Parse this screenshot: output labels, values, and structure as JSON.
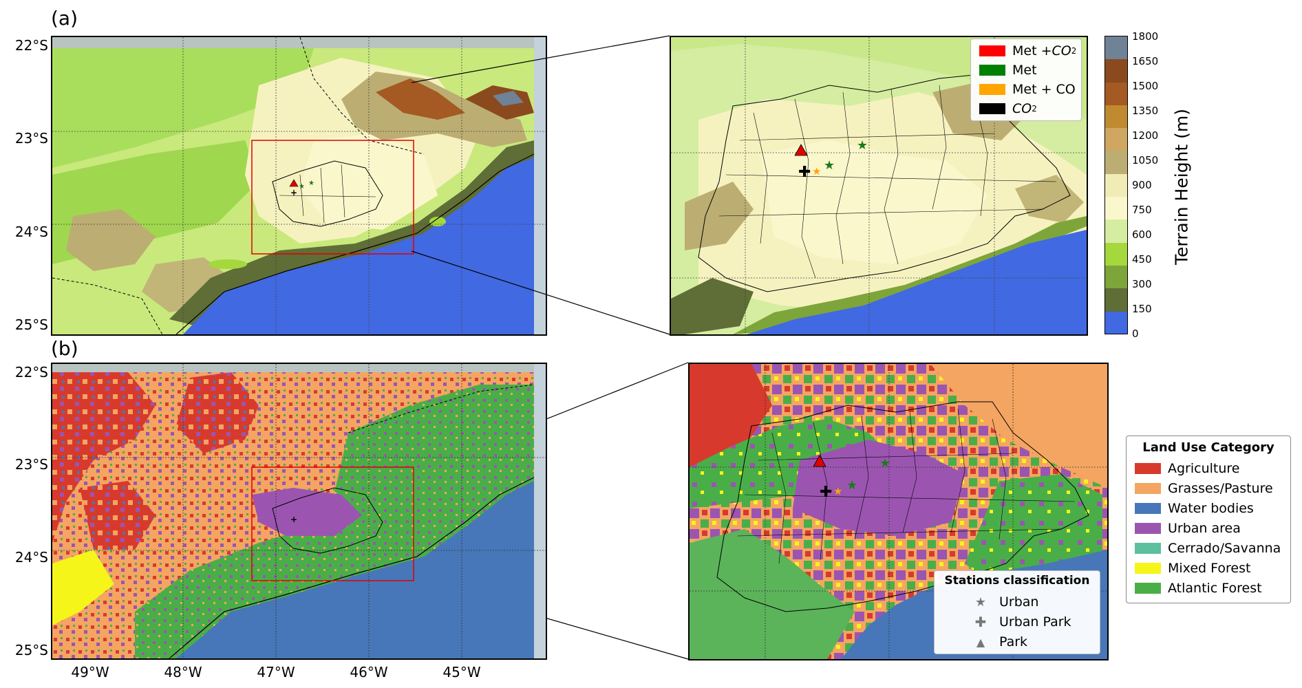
{
  "panels": {
    "a": {
      "letter": "(a)"
    },
    "b": {
      "letter": "(b)"
    }
  },
  "axes": {
    "lat_labels": [
      "22°S",
      "23°S",
      "24°S",
      "25°S"
    ],
    "lon_labels": [
      "49°W",
      "48°W",
      "47°W",
      "46°W",
      "45°W"
    ]
  },
  "terrain_legend": {
    "items": [
      {
        "label_main": "Met + ",
        "label_sub": "CO",
        "label_subscript": "2",
        "color": "#ff0000"
      },
      {
        "label_main": "Met",
        "label_sub": "",
        "label_subscript": "",
        "color": "#008000"
      },
      {
        "label_main": "Met + CO",
        "label_sub": "",
        "label_subscript": "",
        "color": "#ffa500"
      },
      {
        "label_main": "",
        "label_sub": "CO",
        "label_subscript": "2",
        "color": "#000000"
      }
    ]
  },
  "colorbar": {
    "title": "Terrain Height (m)",
    "ticks": [
      "1800",
      "1650",
      "1500",
      "1350",
      "1200",
      "1050",
      "900",
      "750",
      "600",
      "450",
      "300",
      "150",
      "0"
    ],
    "colors": [
      "#6f8296",
      "#8a4a1e",
      "#a45a22",
      "#c08a30",
      "#cfa760",
      "#bcae72",
      "#f1ecb6",
      "#fbf7cc",
      "#d5eda0",
      "#a5d83d",
      "#7ea53a",
      "#5f6d36",
      "#4169e1"
    ]
  },
  "landuse_legend": {
    "title": "Land Use Category",
    "items": [
      {
        "label": "Agriculture",
        "color": "#d73a2d"
      },
      {
        "label": "Grasses/Pasture",
        "color": "#f4a562"
      },
      {
        "label": "Water bodies",
        "color": "#4777b8"
      },
      {
        "label": "Urban area",
        "color": "#9b55b0"
      },
      {
        "label": "Cerrado/Savanna",
        "color": "#5cbf9d"
      },
      {
        "label": "Mixed Forest",
        "color": "#f5f51a"
      },
      {
        "label": "Atlantic Forest",
        "color": "#4aae48"
      }
    ]
  },
  "stations_legend": {
    "title": "Stations classification",
    "items": [
      {
        "label": "Urban",
        "symbol": "star-icon"
      },
      {
        "label": "Urban Park",
        "symbol": "plus-icon"
      },
      {
        "label": "Park",
        "symbol": "triangle-icon"
      }
    ]
  }
}
